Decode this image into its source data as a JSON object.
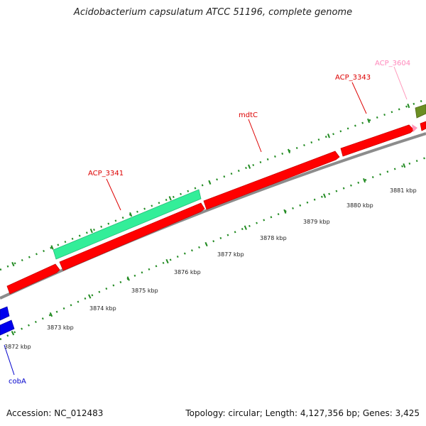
{
  "title": "Acidobacterium capsulatum ATCC 51196, complete genome",
  "footer": {
    "accession": "Accession: NC_012483",
    "summary": "Topology: circular; Length: 4,127,356 bp; Genes: 3,425"
  },
  "colors": {
    "red_gene": "#ff0000",
    "teal_gene": "#33ee99",
    "blue_gene": "#0000ee",
    "olive_gene": "#6b8e23",
    "pink_gene": "#ff99bb",
    "backbone": "#888888",
    "tick": "#228b22",
    "label_red": "#dd0000",
    "label_blue": "#0000cc",
    "label_pink": "#ff88bb"
  },
  "gene_labels": [
    {
      "id": "cobA",
      "text": "cobA",
      "color": "label_blue"
    },
    {
      "id": "ACP_3341",
      "text": "ACP_3341",
      "color": "label_red"
    },
    {
      "id": "mdtC",
      "text": "mdtC",
      "color": "label_red"
    },
    {
      "id": "ACP_3343",
      "text": "ACP_3343",
      "color": "label_red"
    },
    {
      "id": "ACP_3604",
      "text": "ACP_3604",
      "color": "label_pink"
    }
  ],
  "scale_labels": [
    "3872 kbp",
    "3873 kbp",
    "3874 kbp",
    "3875 kbp",
    "3876 kbp",
    "3877 kbp",
    "3878 kbp",
    "3879 kbp",
    "3880 kbp",
    "3881 kbp"
  ]
}
